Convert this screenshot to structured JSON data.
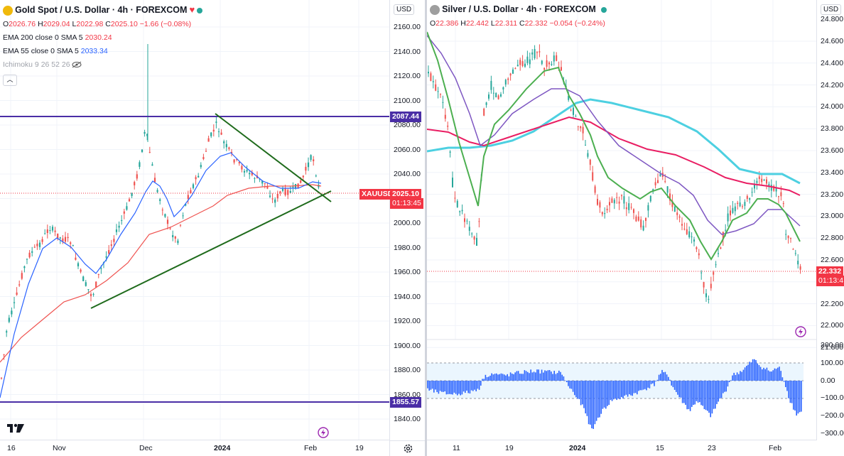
{
  "left": {
    "title": "Gold Spot / U.S. Dollar · 4h · FOREXCOM",
    "ohlc": {
      "o_label": "O",
      "o": "2026.76",
      "h_label": "H",
      "h": "2029.04",
      "l_label": "L",
      "l": "2022.98",
      "c_label": "C",
      "c": "2025.10",
      "chg": "−1.66 (−0.08%)"
    },
    "indicators": [
      {
        "label": "EMA 200 close 0 SMA 5",
        "value": "2030.24",
        "color": "#f23645"
      },
      {
        "label": "EMA 55 close 0 SMA 5",
        "value": "2033.34",
        "color": "#2962ff"
      },
      {
        "label": "Ichimoku 9 26 52 26",
        "value": "",
        "color": "#a0a3ab"
      }
    ],
    "currency": "USD",
    "yticks": [
      "2160.00",
      "2140.00",
      "2120.00",
      "2100.00",
      "2080.00",
      "2060.00",
      "2040.00",
      "2020.00",
      "2000.00",
      "1980.00",
      "1960.00",
      "1940.00",
      "1920.00",
      "1900.00",
      "1880.00",
      "1860.00",
      "1840.00"
    ],
    "xticks": [
      "16",
      "Nov",
      "Dec",
      "2024",
      "Feb",
      "19"
    ],
    "resistance_label": "2087.44",
    "support_label": "1855.57",
    "symbol_label": "XAUUSD",
    "price_label": "2025.10",
    "countdown": "01:13:45",
    "colors": {
      "resistance": "#4a2ea6",
      "triangle": "#1f6b1c",
      "up": "#26a69a",
      "down": "#ef5350",
      "price": "#f23645"
    }
  },
  "right": {
    "title": "Silver / U.S. Dollar · 4h · FOREXCOM",
    "ohlc": {
      "o_label": "O",
      "o": "22.386",
      "h_label": "H",
      "h": "22.442",
      "l_label": "L",
      "l": "22.311",
      "c_label": "C",
      "c": "22.332",
      "chg": "−0.054 (−0.24%)"
    },
    "currency": "USD",
    "yticks": [
      "24.600",
      "24.400",
      "24.200",
      "24.000",
      "23.800",
      "23.600",
      "23.400",
      "23.200",
      "23.000",
      "22.800",
      "22.600",
      "22.400",
      "22.200",
      "22.000",
      "21.800"
    ],
    "osc_ticks": [
      "200.00",
      "100.00",
      "0.00",
      "−100.00",
      "−200.00",
      "−300.00"
    ],
    "yticks_top": "24.800",
    "xticks": [
      "11",
      "19",
      "2024",
      "15",
      "23",
      "Feb"
    ],
    "price_label": "22.332",
    "countdown": "01:13:4",
    "colors": {
      "cyan": "#4dd0e1",
      "crimson": "#e91e63",
      "purple": "#7e57c2",
      "green": "#4caf50",
      "osc": "#2962ff",
      "price": "#f23645"
    }
  }
}
